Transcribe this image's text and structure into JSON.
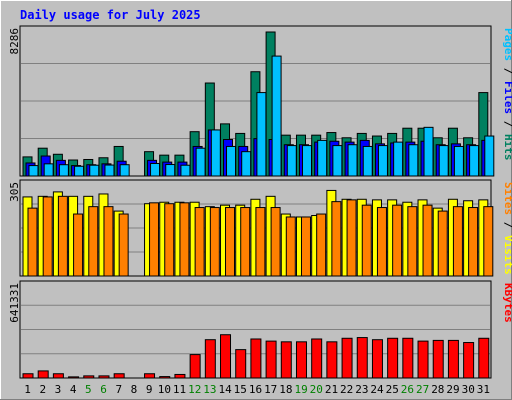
{
  "chart_data": {
    "type": "bar",
    "title": "Daily usage for July 2025",
    "categories": [
      "1",
      "2",
      "3",
      "4",
      "5",
      "6",
      "7",
      "8",
      "9",
      "10",
      "11",
      "12",
      "13",
      "14",
      "15",
      "16",
      "17",
      "18",
      "19",
      "20",
      "21",
      "22",
      "23",
      "24",
      "25",
      "26",
      "27",
      "28",
      "29",
      "30",
      "31"
    ],
    "weekend_days": [
      "5",
      "6",
      "12",
      "13",
      "19",
      "20",
      "26",
      "27"
    ],
    "grid": true,
    "legend": "right-side vertical labels",
    "panels": [
      {
        "name": "hits",
        "max_label": "8286",
        "ylim": [
          0,
          8286
        ],
        "labels": [
          {
            "text": "Pages",
            "color": "#00c0ff"
          },
          {
            "text": " / ",
            "color": "#000000"
          },
          {
            "text": "Files",
            "color": "#0000ff"
          },
          {
            "text": " / ",
            "color": "#000000"
          },
          {
            "text": "Hits",
            "color": "#008060"
          }
        ],
        "series": [
          {
            "name": "Hits",
            "color": "#008060",
            "values": [
              1100,
              1600,
              1250,
              920,
              950,
              1050,
              1700,
              0,
              1400,
              1200,
              1200,
              2550,
              5350,
              3000,
              2450,
              6000,
              8286,
              2350,
              2350,
              2350,
              2500,
              2200,
              2450,
              2300,
              2450,
              2750,
              2750,
              2200,
              2750,
              2200,
              4800
            ]
          },
          {
            "name": "Files",
            "color": "#0000ff",
            "values": [
              750,
              1150,
              900,
              600,
              650,
              700,
              850,
              0,
              900,
              800,
              800,
              1700,
              2650,
              2100,
              1700,
              2150,
              2100,
              1800,
              1800,
              1950,
              2000,
              1950,
              2050,
              1850,
              1900,
              1950,
              2000,
              1800,
              1850,
              1800,
              2050
            ]
          },
          {
            "name": "Pages",
            "color": "#00c0ff",
            "values": [
              600,
              700,
              650,
              560,
              620,
              630,
              650,
              0,
              720,
              660,
              620,
              1600,
              2650,
              1700,
              1400,
              4800,
              6900,
              1750,
              1750,
              2050,
              1750,
              1800,
              1700,
              1750,
              1950,
              1800,
              2800,
              1750,
              1700,
              1750,
              2300
            ]
          }
        ]
      },
      {
        "name": "visits",
        "max_label": "305",
        "ylim": [
          0,
          305
        ],
        "labels": [
          {
            "text": "Sites",
            "color": "#ff8000"
          },
          {
            "text": " / ",
            "color": "#000000"
          },
          {
            "text": "Visits",
            "color": "#ffff00"
          }
        ],
        "series": [
          {
            "name": "Visits",
            "color": "#ffff00",
            "values": [
              268,
              270,
              285,
              270,
              270,
              278,
              220,
              0,
              245,
              250,
              250,
              250,
              235,
              240,
              240,
              260,
              270,
              210,
              200,
              205,
              290,
              260,
              260,
              258,
              258,
              250,
              258,
              230,
              260,
              255,
              258
            ]
          },
          {
            "name": "Sites",
            "color": "#ff8000",
            "values": [
              230,
              268,
              270,
              210,
              235,
              235,
              210,
              0,
              248,
              245,
              248,
              232,
              232,
              232,
              232,
              232,
              232,
              200,
              200,
              210,
              252,
              258,
              240,
              232,
              240,
              235,
              240,
              220,
              235,
              232,
              235
            ]
          }
        ]
      },
      {
        "name": "kbytes",
        "max_label": "641331",
        "ylim": [
          0,
          641331
        ],
        "labels": [
          {
            "text": "KBytes",
            "color": "#ff0000"
          }
        ],
        "series": [
          {
            "name": "KBytes",
            "color": "#ff0000",
            "values": [
              30000,
              50000,
              30000,
              8000,
              15000,
              15000,
              30000,
              0,
              30000,
              10000,
              25000,
              165000,
              270000,
              305000,
              200000,
              275000,
              260000,
              255000,
              255000,
              275000,
              255000,
              280000,
              285000,
              270000,
              280000,
              280000,
              260000,
              265000,
              265000,
              250000,
              280000
            ]
          }
        ]
      }
    ]
  }
}
